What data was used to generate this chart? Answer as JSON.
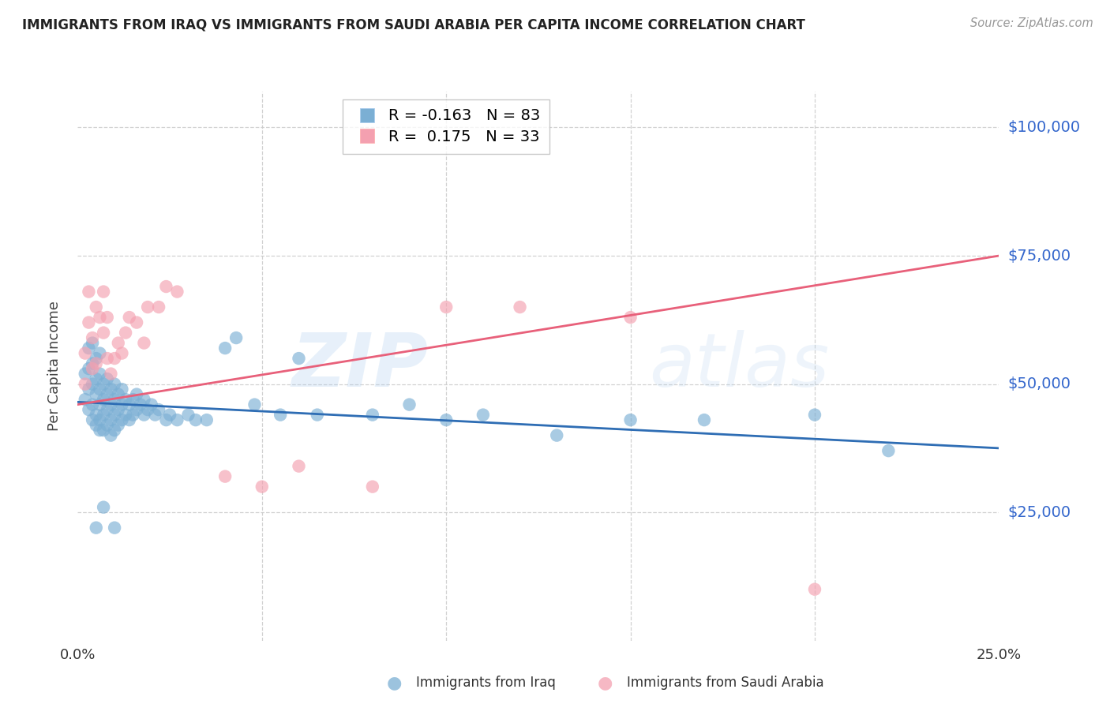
{
  "title": "IMMIGRANTS FROM IRAQ VS IMMIGRANTS FROM SAUDI ARABIA PER CAPITA INCOME CORRELATION CHART",
  "source": "Source: ZipAtlas.com",
  "ylabel": "Per Capita Income",
  "yticks": [
    0,
    25000,
    50000,
    75000,
    100000
  ],
  "ytick_labels": [
    "",
    "$25,000",
    "$50,000",
    "$75,000",
    "$100,000"
  ],
  "xlim": [
    0.0,
    0.25
  ],
  "ylim": [
    0,
    107000
  ],
  "legend_iraq_r": "-0.163",
  "legend_iraq_n": "83",
  "legend_saudi_r": "0.175",
  "legend_saudi_n": "33",
  "iraq_color": "#7BAFD4",
  "saudi_color": "#F4A0B0",
  "iraq_line_color": "#2E6DB4",
  "saudi_line_color": "#E8607A",
  "ytick_color": "#3366CC",
  "title_color": "#222222",
  "watermark_zip": "ZIP",
  "watermark_atlas": "atlas",
  "iraq_x": [
    0.002,
    0.002,
    0.003,
    0.003,
    0.003,
    0.003,
    0.004,
    0.004,
    0.004,
    0.004,
    0.004,
    0.005,
    0.005,
    0.005,
    0.005,
    0.005,
    0.006,
    0.006,
    0.006,
    0.006,
    0.006,
    0.006,
    0.007,
    0.007,
    0.007,
    0.007,
    0.008,
    0.008,
    0.008,
    0.008,
    0.009,
    0.009,
    0.009,
    0.009,
    0.01,
    0.01,
    0.01,
    0.01,
    0.011,
    0.011,
    0.011,
    0.012,
    0.012,
    0.012,
    0.013,
    0.013,
    0.014,
    0.014,
    0.015,
    0.015,
    0.016,
    0.016,
    0.017,
    0.018,
    0.018,
    0.019,
    0.02,
    0.021,
    0.022,
    0.024,
    0.025,
    0.027,
    0.03,
    0.032,
    0.035,
    0.04,
    0.043,
    0.048,
    0.055,
    0.06,
    0.065,
    0.08,
    0.09,
    0.1,
    0.11,
    0.13,
    0.15,
    0.17,
    0.2,
    0.22,
    0.005,
    0.007,
    0.01
  ],
  "iraq_y": [
    47000,
    52000,
    45000,
    49000,
    53000,
    57000,
    43000,
    46000,
    50000,
    54000,
    58000,
    42000,
    44000,
    48000,
    51000,
    55000,
    41000,
    43000,
    46000,
    49000,
    52000,
    56000,
    41000,
    44000,
    47000,
    50000,
    42000,
    45000,
    48000,
    51000,
    40000,
    43000,
    46000,
    49000,
    41000,
    44000,
    47000,
    50000,
    42000,
    45000,
    48000,
    43000,
    46000,
    49000,
    44000,
    47000,
    43000,
    46000,
    44000,
    47000,
    45000,
    48000,
    46000,
    44000,
    47000,
    45000,
    46000,
    44000,
    45000,
    43000,
    44000,
    43000,
    44000,
    43000,
    43000,
    57000,
    59000,
    46000,
    44000,
    55000,
    44000,
    44000,
    46000,
    43000,
    44000,
    40000,
    43000,
    43000,
    44000,
    37000,
    22000,
    26000,
    22000
  ],
  "saudi_x": [
    0.002,
    0.002,
    0.003,
    0.003,
    0.004,
    0.004,
    0.005,
    0.005,
    0.006,
    0.007,
    0.007,
    0.008,
    0.008,
    0.009,
    0.01,
    0.011,
    0.012,
    0.013,
    0.014,
    0.016,
    0.018,
    0.019,
    0.022,
    0.024,
    0.027,
    0.04,
    0.05,
    0.06,
    0.08,
    0.1,
    0.12,
    0.15,
    0.2
  ],
  "saudi_y": [
    50000,
    56000,
    62000,
    68000,
    53000,
    59000,
    54000,
    65000,
    63000,
    60000,
    68000,
    55000,
    63000,
    52000,
    55000,
    58000,
    56000,
    60000,
    63000,
    62000,
    58000,
    65000,
    65000,
    69000,
    68000,
    32000,
    30000,
    34000,
    30000,
    65000,
    65000,
    63000,
    10000
  ],
  "iraq_trend_x": [
    0.0,
    0.25
  ],
  "iraq_trend_y": [
    46500,
    37500
  ],
  "saudi_trend_x": [
    0.0,
    0.25
  ],
  "saudi_trend_y": [
    46000,
    75000
  ],
  "grid_color": "#CCCCCC",
  "bg_color": "#FFFFFF"
}
